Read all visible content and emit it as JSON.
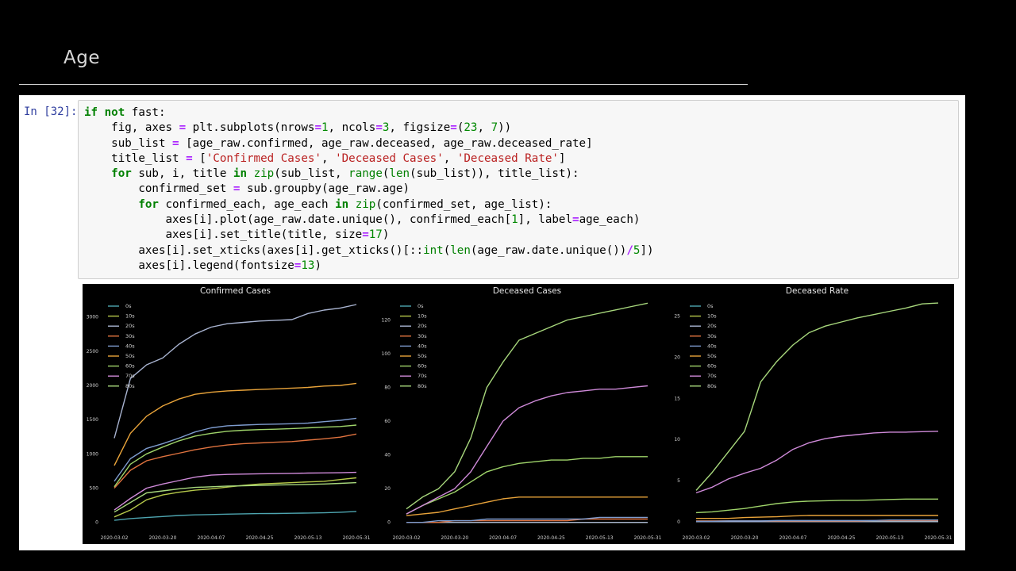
{
  "slide": {
    "title": "Age"
  },
  "cell": {
    "prompt": "In [32]:",
    "code_lines": [
      [
        [
          "k",
          "if"
        ],
        [
          "t",
          " "
        ],
        [
          "k",
          "not"
        ],
        [
          "t",
          " fast:"
        ]
      ],
      [
        [
          "t",
          "    fig, axes "
        ],
        [
          "o",
          "="
        ],
        [
          "t",
          " plt.subplots(nrows"
        ],
        [
          "o",
          "="
        ],
        [
          "n",
          "1"
        ],
        [
          "t",
          ", ncols"
        ],
        [
          "o",
          "="
        ],
        [
          "n",
          "3"
        ],
        [
          "t",
          ", figsize"
        ],
        [
          "o",
          "="
        ],
        [
          "t",
          "("
        ],
        [
          "n",
          "23"
        ],
        [
          "t",
          ", "
        ],
        [
          "n",
          "7"
        ],
        [
          "t",
          "))"
        ]
      ],
      [
        [
          "t",
          "    sub_list "
        ],
        [
          "o",
          "="
        ],
        [
          "t",
          " [age_raw.confirmed, age_raw.deceased, age_raw.deceased_rate]"
        ]
      ],
      [
        [
          "t",
          "    title_list "
        ],
        [
          "o",
          "="
        ],
        [
          "t",
          " ["
        ],
        [
          "s",
          "'Confirmed Cases'"
        ],
        [
          "t",
          ", "
        ],
        [
          "s",
          "'Deceased Cases'"
        ],
        [
          "t",
          ", "
        ],
        [
          "s",
          "'Deceased Rate'"
        ],
        [
          "t",
          "]"
        ]
      ],
      [
        [
          "t",
          "    "
        ],
        [
          "k",
          "for"
        ],
        [
          "t",
          " sub, i, title "
        ],
        [
          "k",
          "in"
        ],
        [
          "t",
          " "
        ],
        [
          "b",
          "zip"
        ],
        [
          "t",
          "(sub_list, "
        ],
        [
          "b",
          "range"
        ],
        [
          "t",
          "("
        ],
        [
          "b",
          "len"
        ],
        [
          "t",
          "(sub_list)), title_list):"
        ]
      ],
      [
        [
          "t",
          "        confirmed_set "
        ],
        [
          "o",
          "="
        ],
        [
          "t",
          " sub.groupby(age_raw.age)"
        ]
      ],
      [
        [
          "t",
          "        "
        ],
        [
          "k",
          "for"
        ],
        [
          "t",
          " confirmed_each, age_each "
        ],
        [
          "k",
          "in"
        ],
        [
          "t",
          " "
        ],
        [
          "b",
          "zip"
        ],
        [
          "t",
          "(confirmed_set, age_list):"
        ]
      ],
      [
        [
          "t",
          "            axes[i].plot(age_raw.date.unique(), confirmed_each["
        ],
        [
          "n",
          "1"
        ],
        [
          "t",
          "], label"
        ],
        [
          "o",
          "="
        ],
        [
          "t",
          "age_each)"
        ]
      ],
      [
        [
          "t",
          "            axes[i].set_title(title, size"
        ],
        [
          "o",
          "="
        ],
        [
          "n",
          "17"
        ],
        [
          "t",
          ")"
        ]
      ],
      [
        [
          "t",
          "        axes[i].set_xticks(axes[i].get_xticks()[::"
        ],
        [
          "b",
          "int"
        ],
        [
          "t",
          "("
        ],
        [
          "b",
          "len"
        ],
        [
          "t",
          "(age_raw.date.unique())"
        ],
        [
          "o",
          "/"
        ],
        [
          "n",
          "5"
        ],
        [
          "t",
          "])"
        ]
      ],
      [
        [
          "t",
          "        axes[i].legend(fontsize"
        ],
        [
          "o",
          "="
        ],
        [
          "n",
          "13"
        ],
        [
          "t",
          ")"
        ]
      ]
    ]
  },
  "chart_data": [
    {
      "type": "line",
      "title": "Confirmed Cases",
      "x_ticks": [
        "2020-03-02",
        "2020-03-20",
        "2020-04-07",
        "2020-04-25",
        "2020-05-13",
        "2020-05-31"
      ],
      "x": [
        "2020-03-02",
        "2020-03-08",
        "2020-03-14",
        "2020-03-20",
        "2020-03-26",
        "2020-04-01",
        "2020-04-07",
        "2020-04-13",
        "2020-04-19",
        "2020-04-25",
        "2020-05-01",
        "2020-05-07",
        "2020-05-13",
        "2020-05-19",
        "2020-05-25",
        "2020-05-31"
      ],
      "y_ticks": [
        0,
        500,
        1000,
        1500,
        2000,
        2500,
        3000
      ],
      "ylim": [
        -50,
        3250
      ],
      "legend": "upper-left",
      "series": [
        {
          "name": "0s",
          "color": "#4ea5b0",
          "values": [
            30,
            55,
            70,
            85,
            100,
            110,
            115,
            120,
            125,
            128,
            130,
            133,
            136,
            140,
            148,
            160
          ]
        },
        {
          "name": "10s",
          "color": "#b6c94a",
          "values": [
            80,
            180,
            330,
            400,
            440,
            470,
            490,
            515,
            540,
            560,
            570,
            580,
            590,
            600,
            625,
            650
          ]
        },
        {
          "name": "20s",
          "color": "#a9b4d1",
          "values": [
            1230,
            2100,
            2300,
            2400,
            2600,
            2750,
            2850,
            2900,
            2920,
            2940,
            2950,
            2960,
            3050,
            3100,
            3130,
            3180
          ]
        },
        {
          "name": "30s",
          "color": "#e0733f",
          "values": [
            500,
            760,
            900,
            960,
            1010,
            1060,
            1100,
            1130,
            1150,
            1160,
            1170,
            1180,
            1200,
            1220,
            1245,
            1290
          ]
        },
        {
          "name": "40s",
          "color": "#7e9ccf",
          "values": [
            600,
            930,
            1080,
            1150,
            1230,
            1320,
            1380,
            1410,
            1420,
            1430,
            1435,
            1440,
            1450,
            1470,
            1490,
            1520
          ]
        },
        {
          "name": "50s",
          "color": "#e8a33a",
          "values": [
            830,
            1300,
            1550,
            1700,
            1800,
            1870,
            1900,
            1920,
            1930,
            1940,
            1950,
            1960,
            1970,
            1990,
            2000,
            2030
          ]
        },
        {
          "name": "60s",
          "color": "#9fd46a",
          "values": [
            520,
            850,
            1000,
            1100,
            1190,
            1260,
            1300,
            1330,
            1345,
            1355,
            1360,
            1370,
            1380,
            1390,
            1400,
            1420
          ]
        },
        {
          "name": "70s",
          "color": "#cf8ad9",
          "values": [
            180,
            350,
            500,
            560,
            610,
            660,
            690,
            700,
            705,
            710,
            712,
            715,
            720,
            722,
            725,
            730
          ]
        },
        {
          "name": "80s",
          "color": "#a7d77c",
          "values": [
            150,
            290,
            430,
            460,
            490,
            510,
            520,
            530,
            535,
            540,
            545,
            550,
            555,
            560,
            570,
            580
          ]
        }
      ]
    },
    {
      "type": "line",
      "title": "Deceased Cases",
      "x_ticks": [
        "2020-03-02",
        "2020-03-20",
        "2020-04-07",
        "2020-04-25",
        "2020-05-13",
        "2020-05-31"
      ],
      "x": [
        "2020-03-02",
        "2020-03-08",
        "2020-03-14",
        "2020-03-20",
        "2020-03-26",
        "2020-04-01",
        "2020-04-07",
        "2020-04-13",
        "2020-04-19",
        "2020-04-25",
        "2020-05-01",
        "2020-05-07",
        "2020-05-13",
        "2020-05-19",
        "2020-05-25",
        "2020-05-31"
      ],
      "y_ticks": [
        0,
        20,
        40,
        60,
        80,
        100,
        120
      ],
      "ylim": [
        -2,
        132
      ],
      "legend": "upper-left",
      "series": [
        {
          "name": "0s",
          "color": "#4ea5b0",
          "values": [
            0,
            0,
            0,
            0,
            0,
            0,
            0,
            0,
            0,
            0,
            0,
            0,
            0,
            0,
            0,
            0
          ]
        },
        {
          "name": "10s",
          "color": "#b6c94a",
          "values": [
            0,
            0,
            0,
            0,
            0,
            0,
            0,
            0,
            0,
            0,
            0,
            0,
            0,
            0,
            0,
            0
          ]
        },
        {
          "name": "20s",
          "color": "#a9b4d1",
          "values": [
            0,
            0,
            0,
            0,
            0,
            0,
            0,
            0,
            0,
            0,
            0,
            0,
            0,
            0,
            0,
            0
          ]
        },
        {
          "name": "30s",
          "color": "#e0733f",
          "values": [
            0,
            0,
            0,
            1,
            1,
            1,
            1,
            1,
            1,
            1,
            1,
            2,
            2,
            2,
            2,
            2
          ]
        },
        {
          "name": "40s",
          "color": "#7e9ccf",
          "values": [
            0,
            0,
            1,
            1,
            1,
            2,
            2,
            2,
            2,
            2,
            2,
            2,
            3,
            3,
            3,
            3
          ]
        },
        {
          "name": "50s",
          "color": "#e8a33a",
          "values": [
            4,
            5,
            6,
            8,
            10,
            12,
            14,
            15,
            15,
            15,
            15,
            15,
            15,
            15,
            15,
            15
          ]
        },
        {
          "name": "60s",
          "color": "#9fd46a",
          "values": [
            5,
            10,
            14,
            18,
            24,
            30,
            33,
            35,
            36,
            37,
            37,
            38,
            38,
            39,
            39,
            39
          ]
        },
        {
          "name": "70s",
          "color": "#cf8ad9",
          "values": [
            5,
            10,
            15,
            20,
            30,
            45,
            60,
            68,
            72,
            75,
            77,
            78,
            79,
            79,
            80,
            81
          ]
        },
        {
          "name": "80s",
          "color": "#a7d77c",
          "values": [
            8,
            15,
            20,
            30,
            50,
            80,
            95,
            108,
            112,
            116,
            120,
            122,
            124,
            126,
            128,
            130
          ]
        }
      ]
    },
    {
      "type": "line",
      "title": "Deceased Rate",
      "x_ticks": [
        "2020-03-02",
        "2020-03-20",
        "2020-04-07",
        "2020-04-25",
        "2020-05-13",
        "2020-05-31"
      ],
      "x": [
        "2020-03-02",
        "2020-03-08",
        "2020-03-14",
        "2020-03-20",
        "2020-03-26",
        "2020-04-01",
        "2020-04-07",
        "2020-04-13",
        "2020-04-19",
        "2020-04-25",
        "2020-05-01",
        "2020-05-07",
        "2020-05-13",
        "2020-05-19",
        "2020-05-25",
        "2020-05-31"
      ],
      "y_ticks": [
        0,
        5,
        10,
        15,
        20,
        25
      ],
      "ylim": [
        -0.5,
        27
      ],
      "legend": "upper-left",
      "series": [
        {
          "name": "0s",
          "color": "#4ea5b0",
          "values": [
            0,
            0,
            0,
            0,
            0,
            0,
            0,
            0,
            0,
            0,
            0,
            0,
            0,
            0,
            0,
            0
          ]
        },
        {
          "name": "10s",
          "color": "#b6c94a",
          "values": [
            0,
            0,
            0,
            0,
            0,
            0,
            0,
            0,
            0,
            0,
            0,
            0,
            0,
            0,
            0,
            0
          ]
        },
        {
          "name": "20s",
          "color": "#a9b4d1",
          "values": [
            0,
            0,
            0,
            0,
            0,
            0,
            0,
            0,
            0,
            0,
            0,
            0,
            0,
            0,
            0,
            0
          ]
        },
        {
          "name": "30s",
          "color": "#e0733f",
          "values": [
            0.1,
            0.1,
            0.1,
            0.1,
            0.1,
            0.1,
            0.1,
            0.1,
            0.1,
            0.1,
            0.1,
            0.15,
            0.15,
            0.15,
            0.15,
            0.15
          ]
        },
        {
          "name": "40s",
          "color": "#7e9ccf",
          "values": [
            0.05,
            0.05,
            0.1,
            0.1,
            0.1,
            0.15,
            0.15,
            0.15,
            0.15,
            0.15,
            0.15,
            0.15,
            0.2,
            0.2,
            0.2,
            0.2
          ]
        },
        {
          "name": "50s",
          "color": "#e8a33a",
          "values": [
            0.4,
            0.4,
            0.4,
            0.5,
            0.55,
            0.6,
            0.7,
            0.75,
            0.75,
            0.75,
            0.75,
            0.75,
            0.75,
            0.75,
            0.75,
            0.75
          ]
        },
        {
          "name": "60s",
          "color": "#9fd46a",
          "values": [
            1.1,
            1.2,
            1.4,
            1.6,
            1.9,
            2.2,
            2.4,
            2.5,
            2.55,
            2.6,
            2.6,
            2.65,
            2.7,
            2.75,
            2.75,
            2.75
          ]
        },
        {
          "name": "70s",
          "color": "#cf8ad9",
          "values": [
            3.5,
            4.2,
            5.2,
            5.9,
            6.5,
            7.5,
            8.8,
            9.6,
            10.1,
            10.4,
            10.6,
            10.8,
            10.9,
            10.9,
            10.95,
            11
          ]
        },
        {
          "name": "80s",
          "color": "#a7d77c",
          "values": [
            3.8,
            6.0,
            8.5,
            11,
            17,
            19.5,
            21.5,
            23,
            23.8,
            24.3,
            24.8,
            25.2,
            25.6,
            26,
            26.5,
            26.6
          ]
        }
      ]
    }
  ]
}
